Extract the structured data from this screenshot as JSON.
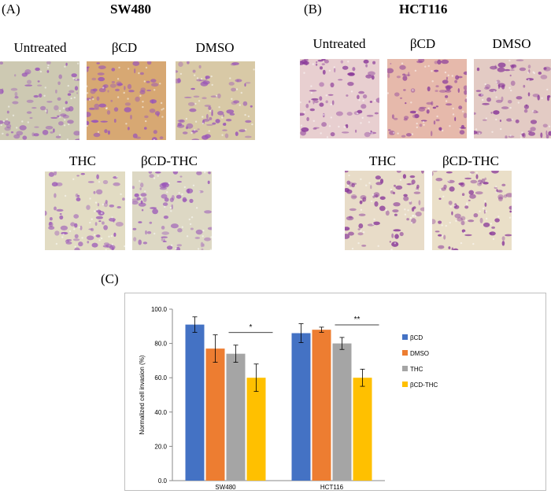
{
  "panelA": {
    "letter": "(A)",
    "title": "SW480",
    "labels": [
      "Untreated",
      "βCD",
      "DMSO",
      "THC",
      "βCD-THC"
    ],
    "tints": [
      "#cdc9b2",
      "#d7a873",
      "#d8c9a6",
      "#e2dcc3",
      "#ddd8c4"
    ],
    "stain": "#9a55b8"
  },
  "panelB": {
    "letter": "(B)",
    "title": "HCT116",
    "labels": [
      "Untreated",
      "βCD",
      "DMSO",
      "THC",
      "βCD-THC"
    ],
    "tints": [
      "#e8cfd0",
      "#e6b9ab",
      "#e3cbc4",
      "#e8dcc8",
      "#eadfc8"
    ],
    "stain": "#8a3a9a"
  },
  "panelC": {
    "letter": "(C)"
  },
  "chart_data": {
    "type": "bar",
    "ylabel": "Normalized cell invasion (%)",
    "ylim": [
      0,
      100
    ],
    "yticks": [
      "0.0",
      "20.0",
      "40.0",
      "60.0",
      "80.0",
      "100.0"
    ],
    "categories": [
      "SW480",
      "HCT116"
    ],
    "series": [
      {
        "name": "βCD",
        "color": "#4472c4",
        "values": [
          91,
          86
        ],
        "errors": [
          4.5,
          5.5
        ]
      },
      {
        "name": "DMSO",
        "color": "#ed7d31",
        "values": [
          77,
          88
        ],
        "errors": [
          8,
          1.5
        ]
      },
      {
        "name": "THC",
        "color": "#a5a5a5",
        "values": [
          74,
          80
        ],
        "errors": [
          5,
          3.5
        ]
      },
      {
        "name": "βCD-THC",
        "color": "#ffc000",
        "values": [
          60,
          60
        ],
        "errors": [
          8,
          5
        ]
      }
    ],
    "significance": [
      "*",
      "**"
    ],
    "legend_position": "right",
    "grid": false
  }
}
